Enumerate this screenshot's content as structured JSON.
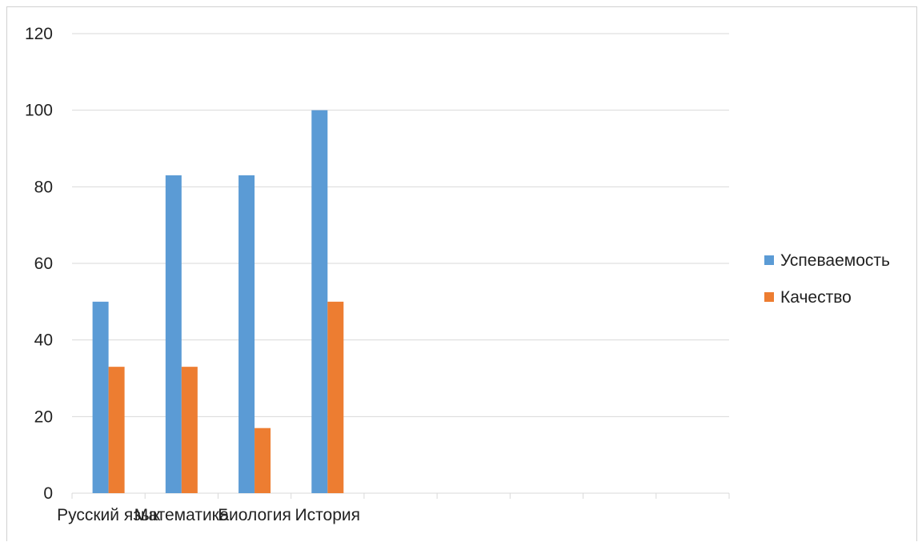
{
  "chart_data": {
    "type": "bar",
    "categories": [
      "Русский язык",
      "Математика",
      "Биология",
      "История",
      "",
      "",
      "",
      "",
      ""
    ],
    "series": [
      {
        "name": "Успеваемость",
        "values": [
          50,
          83,
          83,
          100,
          null,
          null,
          null,
          null,
          null
        ],
        "color": "#5b9bd5"
      },
      {
        "name": "Качество",
        "values": [
          33,
          33,
          17,
          50,
          null,
          null,
          null,
          null,
          null
        ],
        "color": "#ed7d31"
      }
    ],
    "title": "",
    "xlabel": "",
    "ylabel": "",
    "ylim": [
      0,
      120
    ],
    "yticks": [
      0,
      20,
      40,
      60,
      80,
      100,
      120
    ],
    "grid": true,
    "legend_position": "right"
  }
}
